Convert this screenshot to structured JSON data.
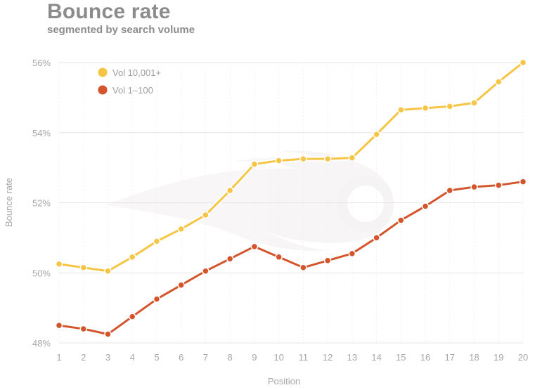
{
  "chart_data": {
    "type": "line",
    "title": "Bounce rate",
    "subtitle": "segmented by search volume",
    "xlabel": "Position",
    "ylabel": "Bounce rate",
    "ylim": [
      48,
      56
    ],
    "yticks": [
      48,
      50,
      52,
      54,
      56
    ],
    "ytick_labels": [
      "48%",
      "50%",
      "52%",
      "54%",
      "56%"
    ],
    "x": [
      1,
      2,
      3,
      4,
      5,
      6,
      7,
      8,
      9,
      10,
      11,
      12,
      13,
      14,
      15,
      16,
      17,
      18,
      19,
      20
    ],
    "grid": "horizontal",
    "legend": "top-left",
    "series": [
      {
        "name": "Vol 10,001+",
        "color": "#f7c545",
        "values": [
          50.25,
          50.15,
          50.05,
          50.45,
          50.9,
          51.25,
          51.65,
          52.35,
          53.1,
          53.2,
          53.25,
          53.25,
          53.28,
          53.95,
          54.65,
          54.7,
          54.75,
          54.85,
          55.45,
          56.0
        ]
      },
      {
        "name": "Vol 1–100",
        "color": "#d4542b",
        "values": [
          48.5,
          48.4,
          48.25,
          48.75,
          49.25,
          49.65,
          50.05,
          50.4,
          50.75,
          50.45,
          50.15,
          50.35,
          50.55,
          51.0,
          51.5,
          51.9,
          52.35,
          52.45,
          52.5,
          52.6
        ]
      }
    ]
  }
}
